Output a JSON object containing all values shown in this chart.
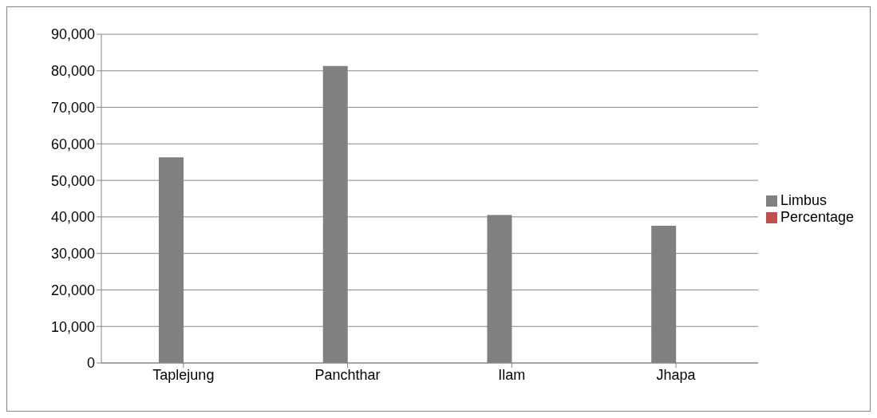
{
  "chart_data": {
    "type": "bar",
    "categories": [
      "Taplejung",
      "Panchthar",
      "Ilam",
      "Jhapa"
    ],
    "series": [
      {
        "name": "Limbus",
        "color": "#808080",
        "values": [
          56300,
          81300,
          40500,
          37600
        ]
      },
      {
        "name": "Percentage",
        "color": "#c0504d",
        "values": [
          null,
          null,
          null,
          null
        ]
      }
    ],
    "ylim": [
      0,
      90000
    ],
    "yticks": [
      0,
      {
        "value": 10000,
        "label": "10,000"
      },
      {
        "value": 20000,
        "label": "20,000"
      },
      {
        "value": 30000,
        "label": "30,000"
      },
      {
        "value": 40000,
        "label": "40,000"
      },
      {
        "value": 50000,
        "label": "50,000"
      },
      {
        "value": 60000,
        "label": "60,000"
      },
      {
        "value": 70000,
        "label": "70,000"
      },
      {
        "value": 80000,
        "label": "80,000"
      },
      {
        "value": 90000,
        "label": "90,000"
      }
    ],
    "grid": "y",
    "legend": "right"
  }
}
